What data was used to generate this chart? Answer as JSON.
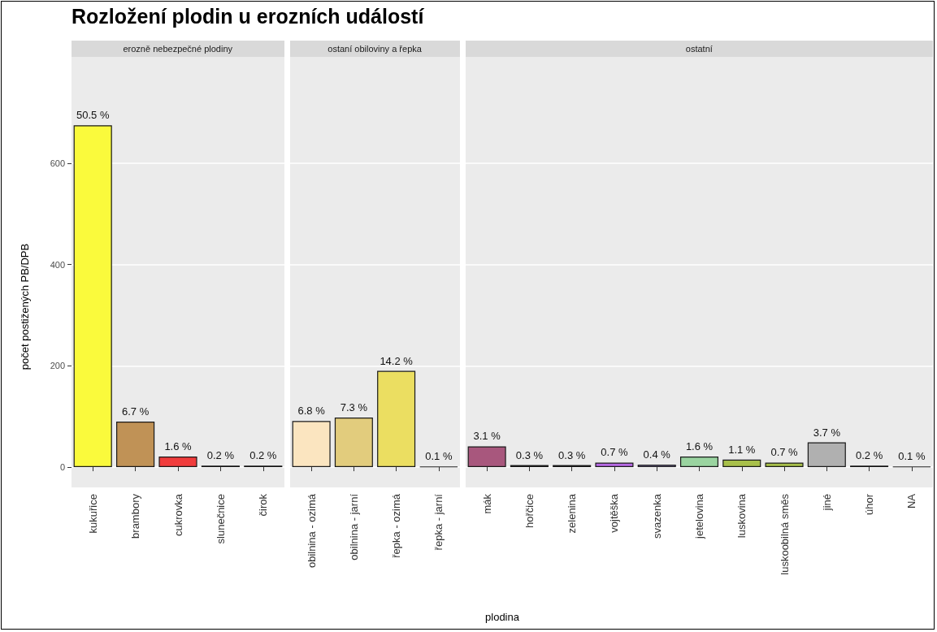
{
  "chart_data": [
    {
      "type": "bar",
      "title": "Rozložení plodin u erozních událostí",
      "subtitle": "erozně nebezpečné plodiny",
      "ylabel": "počet postižených PB/DPB",
      "categories": [
        "kukuřice",
        "brambory",
        "cukrovka",
        "slunečnice",
        "čirok"
      ],
      "values": [
        675,
        90,
        21,
        3,
        3
      ],
      "colors": [
        "#fafa3c",
        "#c09256",
        "#f03c3c",
        "#1e1e1e",
        "#1e1e1e"
      ],
      "annotations": [
        {
          "text": "50.5 %",
          "x": "kukuřice",
          "y": 675
        },
        {
          "text": "6.7 %",
          "x": "brambory",
          "y": 90
        },
        {
          "text": "1.6 %",
          "x": "cukrovka",
          "y": 21
        },
        {
          "text": "0.2 %",
          "x": "slunečnice",
          "y": 3
        },
        {
          "text": "0.2 %",
          "x": "čirok",
          "y": 3
        }
      ],
      "ylim": [
        -40,
        810
      ],
      "yticks": [
        0,
        200,
        400,
        600
      ],
      "grid": true
    },
    {
      "type": "bar",
      "subtitle": "ostaní obiloviny a řepka",
      "categories": [
        "obilnina - ozimá",
        "obilnina - jarní",
        "řepka - ozimá",
        "řepka - jarní"
      ],
      "values": [
        91,
        98,
        190,
        1
      ],
      "colors": [
        "#fbe5c0",
        "#e2cc7d",
        "#ebde61",
        "#1e1e1e"
      ],
      "annotations": [
        {
          "text": "6.8 %",
          "x": "obilnina - ozimá",
          "y": 91
        },
        {
          "text": "7.3 %",
          "x": "obilnina - jarní",
          "y": 98
        },
        {
          "text": "14.2 %",
          "x": "řepka - ozimá",
          "y": 190
        },
        {
          "text": "0.1 %",
          "x": "řepka - jarní",
          "y": 1
        }
      ],
      "ylim": [
        -40,
        810
      ],
      "yticks": [
        0,
        200,
        400,
        600
      ],
      "grid": true,
      "tick_labels": "x"
    },
    {
      "type": "bar",
      "subtitle": "ostatní",
      "xlabel": "plodina",
      "categories": [
        "mák",
        "hořčice",
        "zelenina",
        "vojtěška",
        "svazenka",
        "jetelovina",
        "luskovina",
        "luskoobilná směs",
        "jiné",
        "úhor",
        "NA"
      ],
      "values": [
        41,
        4,
        4,
        9,
        5,
        21,
        15,
        9,
        49,
        3,
        1
      ],
      "colors": [
        "#a8577d",
        "#6b7b52",
        "#d67f70",
        "#b86ae6",
        "#a89ad8",
        "#9ad4a0",
        "#a8c04a",
        "#a8c04a",
        "#b0b0b0",
        "#1e1e1e",
        "#1e1e1e"
      ],
      "annotations": [
        {
          "text": "3.1 %",
          "x": "mák",
          "y": 41
        },
        {
          "text": "0.3 %",
          "x": "hořčice",
          "y": 4
        },
        {
          "text": "0.3 %",
          "x": "zelenina",
          "y": 4
        },
        {
          "text": "0.7 %",
          "x": "vojtěška",
          "y": 9
        },
        {
          "text": "0.4 %",
          "x": "svazenka",
          "y": 5
        },
        {
          "text": "1.6 %",
          "x": "jetelovina",
          "y": 21
        },
        {
          "text": "1.1 %",
          "x": "luskovina",
          "y": 15
        },
        {
          "text": "0.7 %",
          "x": "luskoobilná směs",
          "y": 9
        },
        {
          "text": "3.7 %",
          "x": "jiné",
          "y": 49
        },
        {
          "text": "0.2 %",
          "x": "úhor",
          "y": 3
        },
        {
          "text": "0.1 %",
          "x": "NA",
          "y": 1
        }
      ],
      "ylim": [
        -40,
        810
      ],
      "yticks": [
        0,
        200,
        400,
        600
      ],
      "grid": true,
      "tick_labels": "x"
    }
  ]
}
